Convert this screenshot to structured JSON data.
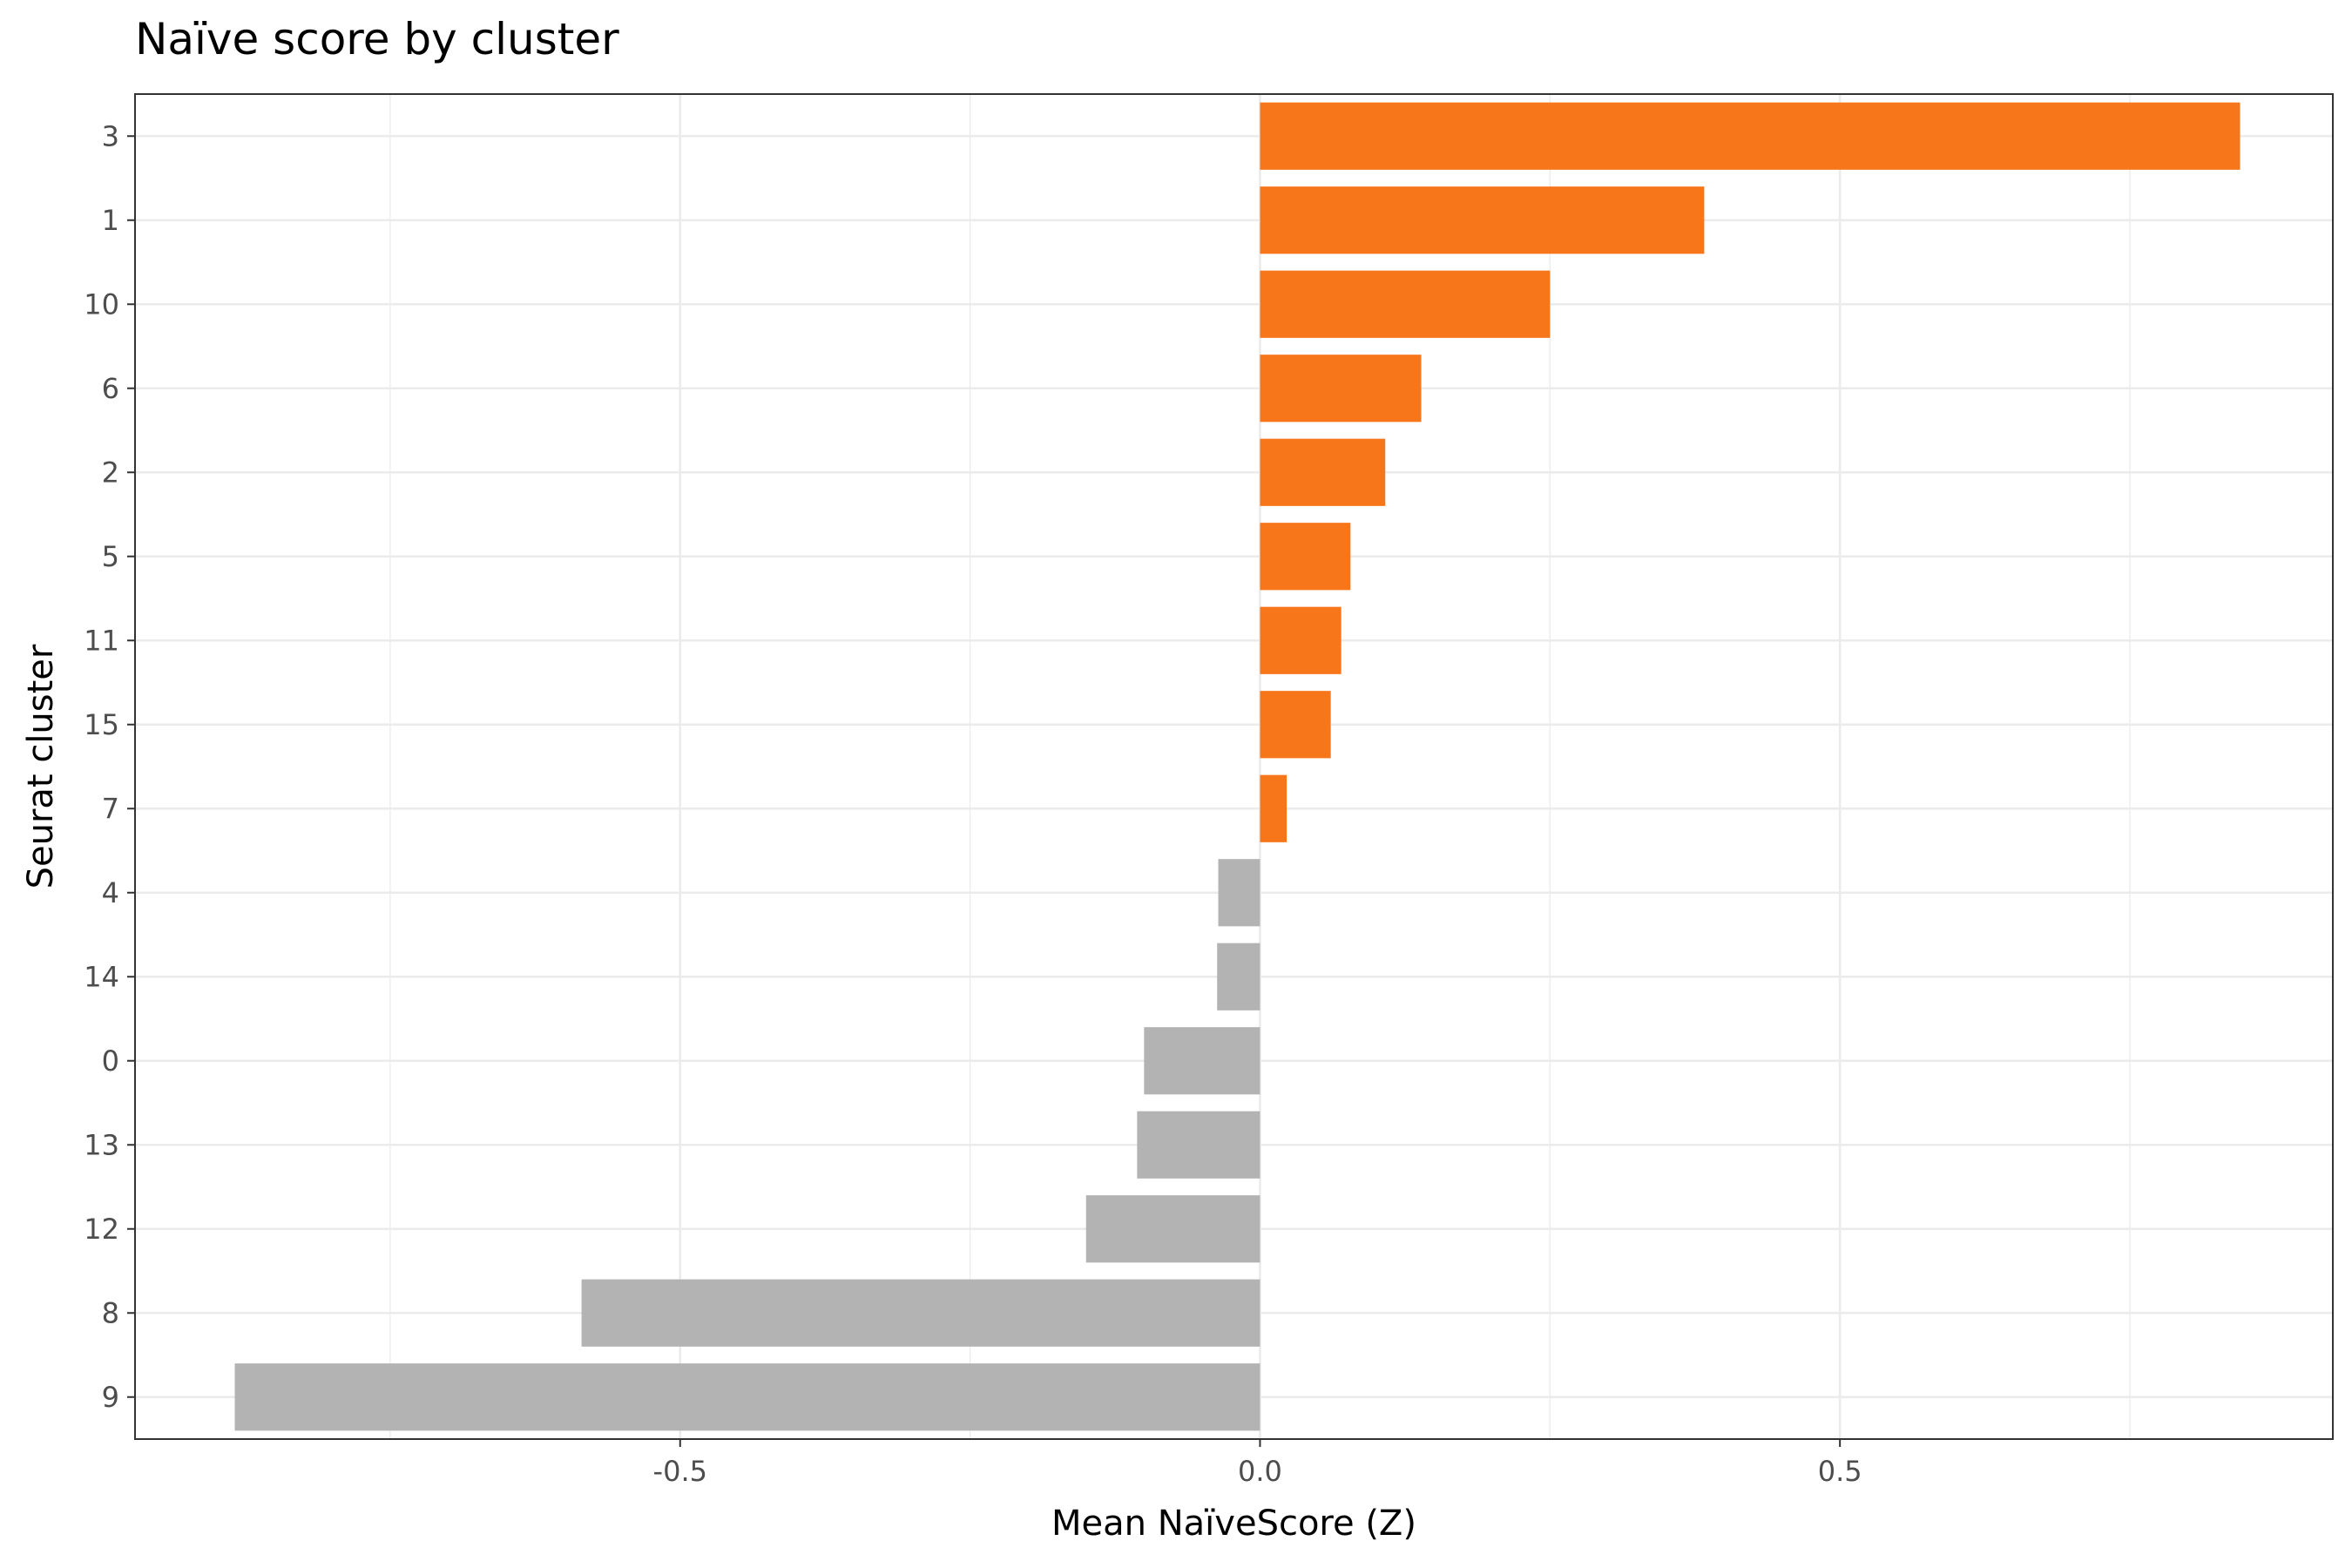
{
  "chart_data": {
    "type": "bar",
    "orientation": "horizontal",
    "title": "Naïve score by cluster",
    "xlabel": "Mean NaïveScore (Z)",
    "ylabel": "Seurat cluster",
    "categories": [
      "3",
      "1",
      "10",
      "6",
      "2",
      "5",
      "11",
      "15",
      "7",
      "4",
      "14",
      "0",
      "13",
      "12",
      "8",
      "9"
    ],
    "values": [
      0.845,
      0.383,
      0.25,
      0.139,
      0.108,
      0.078,
      0.07,
      0.061,
      0.023,
      -0.036,
      -0.037,
      -0.1,
      -0.106,
      -0.15,
      -0.585,
      -0.884
    ],
    "xlim": [
      -0.97,
      0.925
    ],
    "xticks": [
      -0.5,
      0.0,
      0.5
    ],
    "xtick_labels": [
      "-0.5",
      "0.0",
      "0.5"
    ],
    "grid": true,
    "colors": {
      "positive": "#f8761a",
      "negative": "#b3b3b3",
      "grid": "#ebebeb",
      "panel_border": "#333333"
    }
  }
}
